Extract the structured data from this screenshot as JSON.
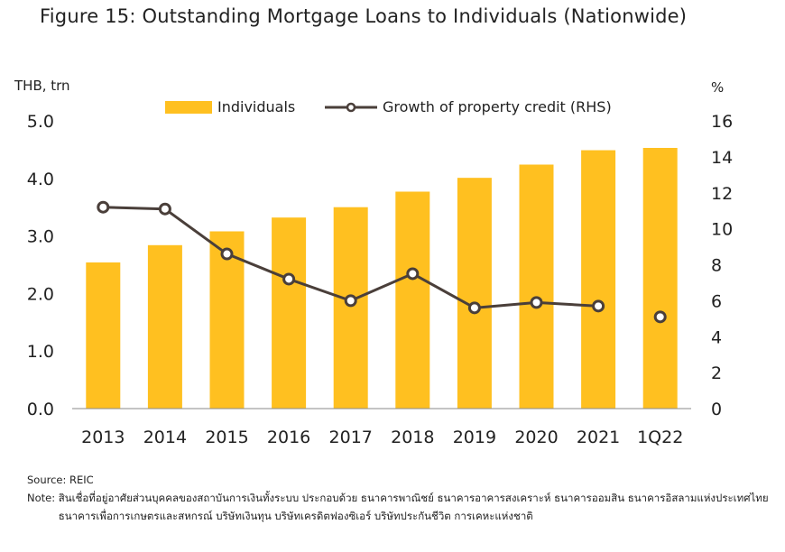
{
  "title": "Figure 15:  Outstanding Mortgage Loans to Individuals (Nationwide)",
  "chart_data": {
    "type": "bar",
    "categories": [
      "2013",
      "2014",
      "2015",
      "2016",
      "2017",
      "2018",
      "2019",
      "2020",
      "2021",
      "1Q22"
    ],
    "series": [
      {
        "name": "Individuals",
        "kind": "bar",
        "axis": "left",
        "color": "#FFC020",
        "values": [
          2.54,
          2.84,
          3.08,
          3.32,
          3.5,
          3.77,
          4.01,
          4.24,
          4.49,
          4.53
        ]
      },
      {
        "name": "Growth of property credit (RHS)",
        "kind": "line",
        "axis": "right",
        "color": "#4A3F3A",
        "values": [
          11.2,
          11.1,
          8.6,
          7.2,
          6.0,
          7.5,
          5.6,
          5.9,
          5.7,
          5.1
        ],
        "line_connects_through": "2021"
      }
    ],
    "y_left": {
      "label": "THB, trn",
      "ylim": [
        0,
        5
      ],
      "ticks": [
        "0.0",
        "1.0",
        "2.0",
        "3.0",
        "4.0",
        "5.0"
      ]
    },
    "y_right": {
      "label": "%",
      "ylim": [
        0,
        16
      ],
      "ticks": [
        "0",
        "2",
        "4",
        "6",
        "8",
        "10",
        "12",
        "14",
        "16"
      ]
    },
    "grid": false,
    "legend": "top-center"
  },
  "footer": {
    "source": "Source: REIC",
    "note_label": "Note: ",
    "note_text": "สินเชื่อที่อยู่อาศัยส่วนบุคคลของสถาบันการเงินทั้งระบบ ประกอบด้วย ธนาคารพาณิชย์ ธนาคารอาคารสงเคราะห์ ธนาคารออมสิน ธนาคารอิสลามแห่งประเทศไทย ธนาคารเพื่อการเกษตรและสหกรณ์ บริษัทเงินทุน บริษัทเครดิตฟองซิเอร์ บริษัทประกันชีวิต การเคหะแห่งชาติ"
  }
}
